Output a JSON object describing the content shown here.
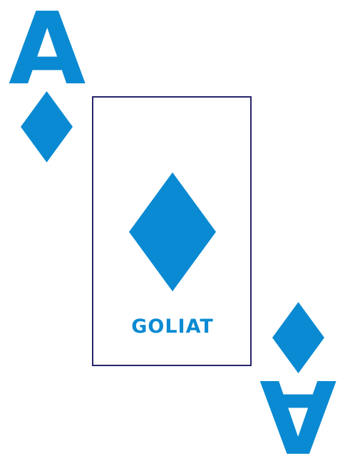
{
  "card": {
    "rank": "A",
    "suit": "diamond",
    "brand": "GOLIAT"
  },
  "colors": {
    "suit": "#0a8ad2",
    "frame": "#27266b",
    "background": "#ffffff"
  },
  "icons": {
    "suit_icon": "diamond-icon"
  }
}
